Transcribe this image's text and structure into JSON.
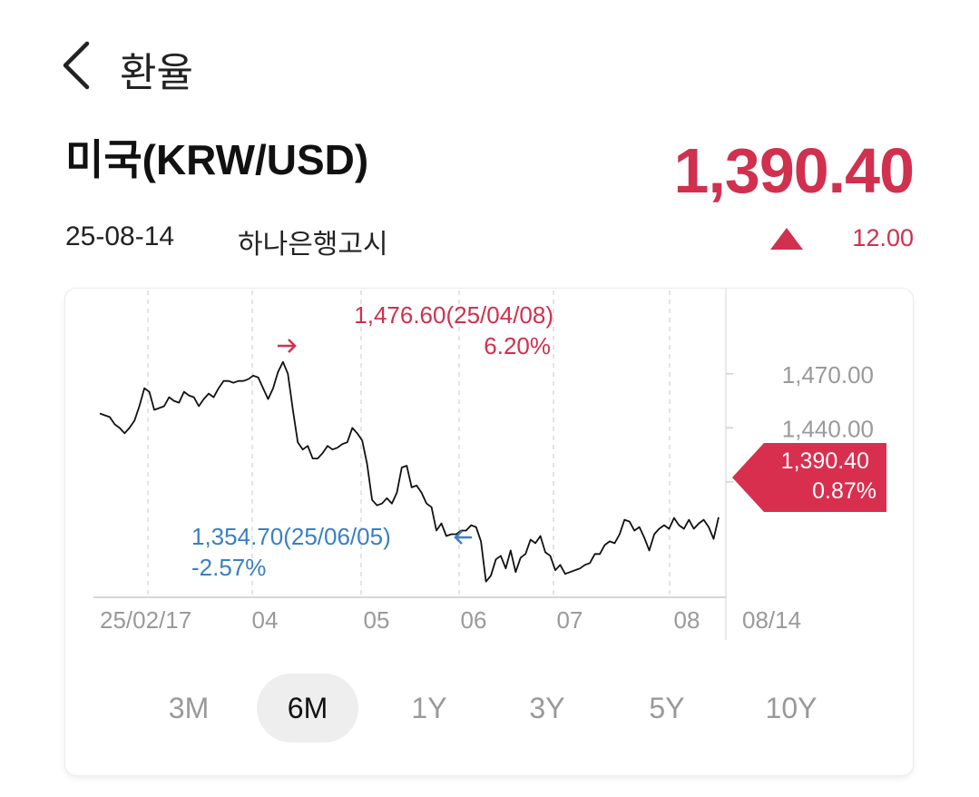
{
  "header": {
    "title": "환율",
    "back_icon": "chevron-left-icon"
  },
  "currency": {
    "name": "미국(KRW/USD)",
    "date": "25-08-14",
    "source": "하나은행고시"
  },
  "rate": {
    "value": "1,390.40",
    "change": "12.00",
    "direction": "up",
    "color": "#d1304f"
  },
  "chart": {
    "high_label": "1,476.60(25/04/08)",
    "high_pct": "6.20%",
    "low_label": "1,354.70(25/06/05)",
    "low_pct": "-2.57%",
    "current_label": "1,390.40",
    "current_pct": "0.87%",
    "high_color": "#d1304f",
    "low_color": "#3a7fc4"
  },
  "chart_data": {
    "type": "line",
    "y_ticks": [
      "1,470.00",
      "1,440.00"
    ],
    "x_ticks": [
      "25/02/17",
      "04",
      "05",
      "06",
      "07",
      "08",
      "08/14"
    ],
    "ylim": [
      1346,
      1485
    ],
    "series": [
      {
        "values": [
          1448,
          1447,
          1446,
          1442,
          1440,
          1437,
          1440,
          1444,
          1452,
          1462,
          1460,
          1450,
          1451,
          1452,
          1457,
          1455,
          1454,
          1460,
          1458,
          1457,
          1452,
          1456,
          1459,
          1457,
          1462,
          1466,
          1466,
          1465,
          1466,
          1466,
          1467,
          1469,
          1468,
          1462,
          1456,
          1462,
          1471,
          1476.6,
          1470,
          1450,
          1432,
          1428,
          1430,
          1423,
          1423,
          1426,
          1430,
          1428,
          1429,
          1431,
          1432,
          1440,
          1437,
          1433,
          1420,
          1400,
          1397,
          1398,
          1401,
          1398,
          1404,
          1418,
          1419,
          1407,
          1408,
          1404,
          1398,
          1396,
          1383,
          1387,
          1380,
          1381,
          1381,
          1383,
          1383,
          1386,
          1385,
          1377,
          1354.7,
          1358,
          1367,
          1369,
          1362,
          1372,
          1360,
          1368,
          1370,
          1378,
          1376,
          1380,
          1371,
          1369,
          1361,
          1364,
          1359,
          1360,
          1361,
          1362,
          1364,
          1365,
          1370,
          1370,
          1375,
          1377,
          1376,
          1381,
          1389,
          1388,
          1383,
          1385,
          1379,
          1372,
          1381,
          1384,
          1386,
          1384,
          1390,
          1386,
          1384,
          1389,
          1384,
          1387,
          1389,
          1385,
          1378.4,
          1390.4
        ]
      }
    ]
  },
  "ranges": {
    "items": [
      "3M",
      "6M",
      "1Y",
      "3Y",
      "5Y",
      "10Y"
    ],
    "selected": "6M"
  }
}
